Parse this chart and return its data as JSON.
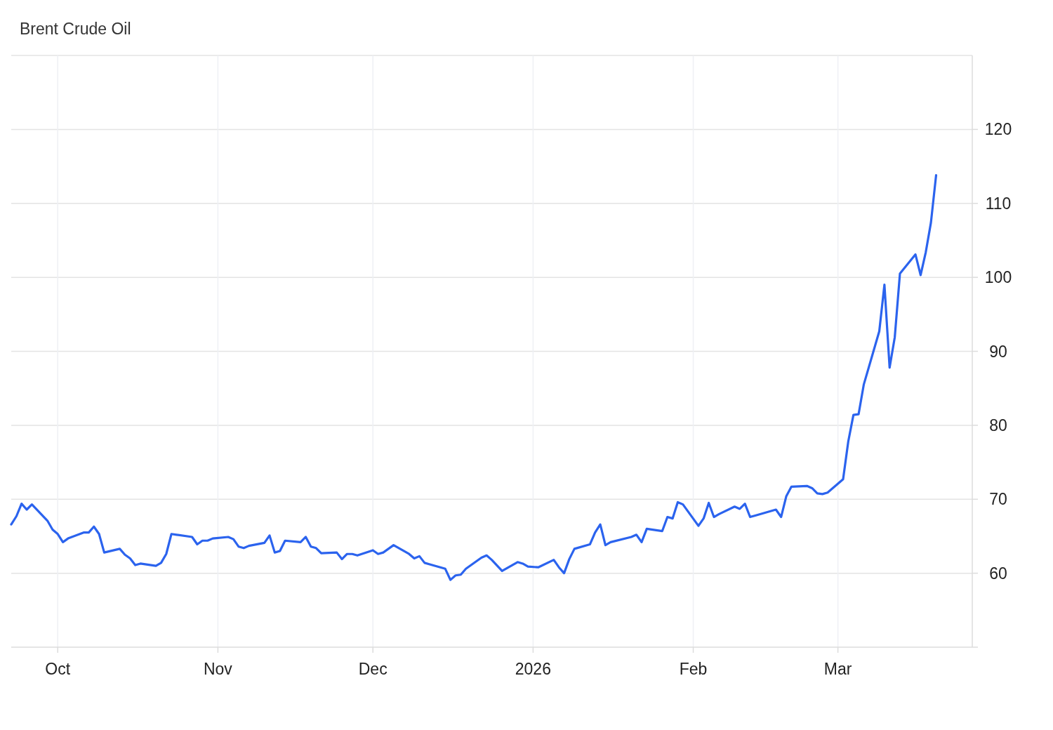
{
  "chart_data": {
    "type": "line",
    "title": "Brent Crude Oil",
    "x": [
      "2025-09-22",
      "2025-09-23",
      "2025-09-24",
      "2025-09-25",
      "2025-09-26",
      "2025-09-29",
      "2025-09-30",
      "2025-10-01",
      "2025-10-02",
      "2025-10-03",
      "2025-10-06",
      "2025-10-07",
      "2025-10-08",
      "2025-10-09",
      "2025-10-10",
      "2025-10-13",
      "2025-10-14",
      "2025-10-15",
      "2025-10-16",
      "2025-10-17",
      "2025-10-20",
      "2025-10-21",
      "2025-10-22",
      "2025-10-23",
      "2025-10-24",
      "2025-10-27",
      "2025-10-28",
      "2025-10-29",
      "2025-10-30",
      "2025-10-31",
      "2025-11-03",
      "2025-11-04",
      "2025-11-05",
      "2025-11-06",
      "2025-11-07",
      "2025-11-10",
      "2025-11-11",
      "2025-11-12",
      "2025-11-13",
      "2025-11-14",
      "2025-11-17",
      "2025-11-18",
      "2025-11-19",
      "2025-11-20",
      "2025-11-21",
      "2025-11-24",
      "2025-11-25",
      "2025-11-26",
      "2025-11-27",
      "2025-11-28",
      "2025-12-01",
      "2025-12-02",
      "2025-12-03",
      "2025-12-04",
      "2025-12-05",
      "2025-12-08",
      "2025-12-09",
      "2025-12-10",
      "2025-12-11",
      "2025-12-12",
      "2025-12-15",
      "2025-12-16",
      "2025-12-17",
      "2025-12-18",
      "2025-12-19",
      "2025-12-22",
      "2025-12-23",
      "2025-12-24",
      "2025-12-26",
      "2025-12-29",
      "2025-12-30",
      "2025-12-31",
      "2026-01-02",
      "2026-01-05",
      "2026-01-06",
      "2026-01-07",
      "2026-01-08",
      "2026-01-09",
      "2026-01-12",
      "2026-01-13",
      "2026-01-14",
      "2026-01-15",
      "2026-01-16",
      "2026-01-20",
      "2026-01-21",
      "2026-01-22",
      "2026-01-23",
      "2026-01-26",
      "2026-01-27",
      "2026-01-28",
      "2026-01-29",
      "2026-01-30",
      "2026-02-02",
      "2026-02-03",
      "2026-02-04",
      "2026-02-05",
      "2026-02-06",
      "2026-02-09",
      "2026-02-10",
      "2026-02-11",
      "2026-02-12",
      "2026-02-13",
      "2026-02-17",
      "2026-02-18",
      "2026-02-19",
      "2026-02-20",
      "2026-02-23",
      "2026-02-24",
      "2026-02-25",
      "2026-02-26",
      "2026-02-27",
      "2026-03-02",
      "2026-03-03",
      "2026-03-04",
      "2026-03-05",
      "2026-03-06",
      "2026-03-09",
      "2026-03-10",
      "2026-03-11",
      "2026-03-12",
      "2026-03-13",
      "2026-03-16",
      "2026-03-17",
      "2026-03-18",
      "2026-03-19",
      "2026-03-20"
    ],
    "series": [
      {
        "color": "#2b63ee",
        "values": [
          66.6,
          67.7,
          69.4,
          68.6,
          69.3,
          67.1,
          65.9,
          65.3,
          64.2,
          64.7,
          65.5,
          65.5,
          66.3,
          65.3,
          62.8,
          63.3,
          62.5,
          62.0,
          61.1,
          61.3,
          61.0,
          61.4,
          62.6,
          65.3,
          65.2,
          64.9,
          63.9,
          64.4,
          64.4,
          64.7,
          64.9,
          64.6,
          63.6,
          63.4,
          63.7,
          64.1,
          65.1,
          62.8,
          63.0,
          64.4,
          64.2,
          64.9,
          63.6,
          63.4,
          62.7,
          62.8,
          61.9,
          62.6,
          62.6,
          62.4,
          63.1,
          62.6,
          62.8,
          63.3,
          63.8,
          62.6,
          62.0,
          62.3,
          61.4,
          61.2,
          60.6,
          59.1,
          59.7,
          59.8,
          60.6,
          62.1,
          62.4,
          61.8,
          60.3,
          61.5,
          61.3,
          60.9,
          60.8,
          61.8,
          60.8,
          60.0,
          61.9,
          63.3,
          63.9,
          65.5,
          66.6,
          63.8,
          64.2,
          64.9,
          65.2,
          64.2,
          66.0,
          65.7,
          67.6,
          67.4,
          69.6,
          69.3,
          66.4,
          67.4,
          69.5,
          67.6,
          68.0,
          69.0,
          68.7,
          69.4,
          67.6,
          67.8,
          68.6,
          67.6,
          70.4,
          71.7,
          71.8,
          71.5,
          70.8,
          70.7,
          70.9,
          72.7,
          77.8,
          81.4,
          81.5,
          85.5,
          92.7,
          99.0,
          87.8,
          91.9,
          100.5,
          103.1,
          100.3,
          103.4,
          107.4,
          113.8
        ]
      }
    ],
    "xlim": [
      "2025-09-22",
      "2026-03-27"
    ],
    "xticks": [
      {
        "value": "2025-10-01",
        "label": "Oct"
      },
      {
        "value": "2025-11-01",
        "label": "Nov"
      },
      {
        "value": "2025-12-01",
        "label": "Dec"
      },
      {
        "value": "2026-01-01",
        "label": "2026"
      },
      {
        "value": "2026-02-01",
        "label": "Feb"
      },
      {
        "value": "2026-03-01",
        "label": "Mar"
      }
    ],
    "ylim": [
      50,
      130
    ],
    "yticks": [
      60,
      70,
      80,
      90,
      100,
      110,
      120
    ],
    "grid": true
  }
}
